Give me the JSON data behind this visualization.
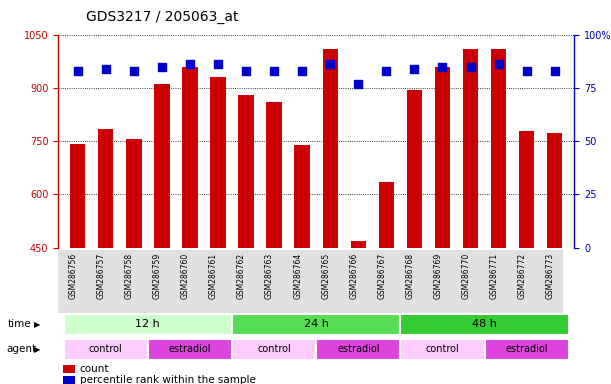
{
  "title": "GDS3217 / 205063_at",
  "samples": [
    "GSM286756",
    "GSM286757",
    "GSM286758",
    "GSM286759",
    "GSM286760",
    "GSM286761",
    "GSM286762",
    "GSM286763",
    "GSM286764",
    "GSM286765",
    "GSM286766",
    "GSM286767",
    "GSM286768",
    "GSM286769",
    "GSM286770",
    "GSM286771",
    "GSM286772",
    "GSM286773"
  ],
  "counts": [
    743,
    783,
    757,
    912,
    960,
    930,
    880,
    860,
    740,
    1010,
    470,
    635,
    893,
    958,
    1010,
    1010,
    778,
    773
  ],
  "percentile_ranks": [
    83,
    84,
    83,
    85,
    86,
    86,
    83,
    83,
    83,
    86,
    77,
    83,
    84,
    85,
    85,
    86,
    83,
    83
  ],
  "ylim_left": [
    450,
    1050
  ],
  "ylim_right": [
    0,
    100
  ],
  "yticks_left": [
    450,
    600,
    750,
    900,
    1050
  ],
  "yticks_right": [
    0,
    25,
    50,
    75,
    100
  ],
  "ytick_labels_right": [
    "0",
    "25",
    "50",
    "75",
    "100%"
  ],
  "bar_color": "#cc0000",
  "dot_color": "#0000cc",
  "plot_bg_color": "#ffffff",
  "time_groups": [
    {
      "label": "12 h",
      "start": 0,
      "end": 5,
      "color": "#ccffcc"
    },
    {
      "label": "24 h",
      "start": 6,
      "end": 11,
      "color": "#55dd55"
    },
    {
      "label": "48 h",
      "start": 12,
      "end": 17,
      "color": "#33cc33"
    }
  ],
  "agent_groups": [
    {
      "label": "control",
      "start": 0,
      "end": 2,
      "color": "#ffccff"
    },
    {
      "label": "estradiol",
      "start": 3,
      "end": 5,
      "color": "#dd44dd"
    },
    {
      "label": "control",
      "start": 6,
      "end": 8,
      "color": "#ffccff"
    },
    {
      "label": "estradiol",
      "start": 9,
      "end": 11,
      "color": "#dd44dd"
    },
    {
      "label": "control",
      "start": 12,
      "end": 14,
      "color": "#ffccff"
    },
    {
      "label": "estradiol",
      "start": 15,
      "end": 17,
      "color": "#dd44dd"
    }
  ],
  "left_axis_color": "#cc0000",
  "right_axis_color": "#0000cc",
  "title_fontsize": 10,
  "tick_fontsize": 7,
  "bar_width": 0.55,
  "dot_size": 28,
  "n_samples": 18
}
